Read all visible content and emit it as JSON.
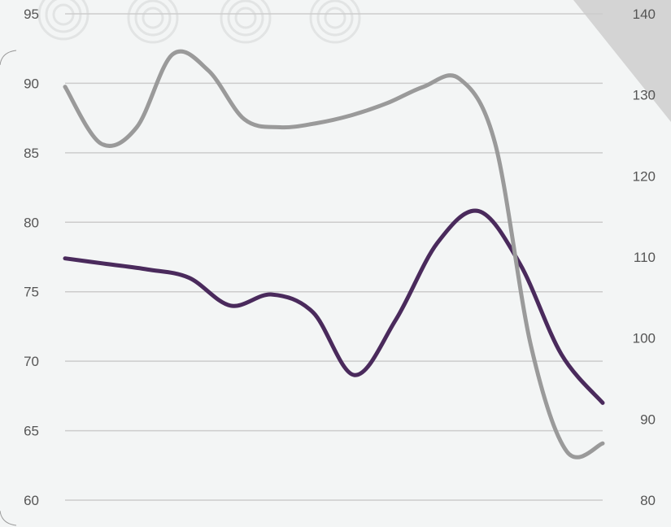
{
  "chart_data": {
    "type": "line",
    "title": "",
    "xlabel": "",
    "ylabel": "",
    "y_left_range": [
      60,
      95
    ],
    "y_left_ticks": [
      "60",
      "65",
      "70",
      "75",
      "80",
      "85",
      "90",
      "95"
    ],
    "y_right_range": [
      80,
      140
    ],
    "y_right_ticks": [
      "80",
      "90",
      "100",
      "110",
      "120",
      "130",
      "140"
    ],
    "grid": true,
    "legend": "none",
    "series": [
      {
        "axis": "left",
        "color": "#4a2a5c",
        "values": [
          77.4,
          77.0,
          76.6,
          76.0,
          74.0,
          74.8,
          73.5,
          69.0,
          73.0,
          78.5,
          80.8,
          77.0,
          70.5,
          67.0
        ]
      },
      {
        "axis": "right",
        "color": "#9a9a9a",
        "values": [
          131,
          124,
          126,
          135,
          133,
          127,
          126,
          126.5,
          127.5,
          129,
          131,
          132,
          124,
          99,
          86,
          87
        ]
      }
    ]
  },
  "colors": {
    "background": "#f3f5f5",
    "grid": "#cccccc",
    "corner": "#d4d4d4"
  }
}
